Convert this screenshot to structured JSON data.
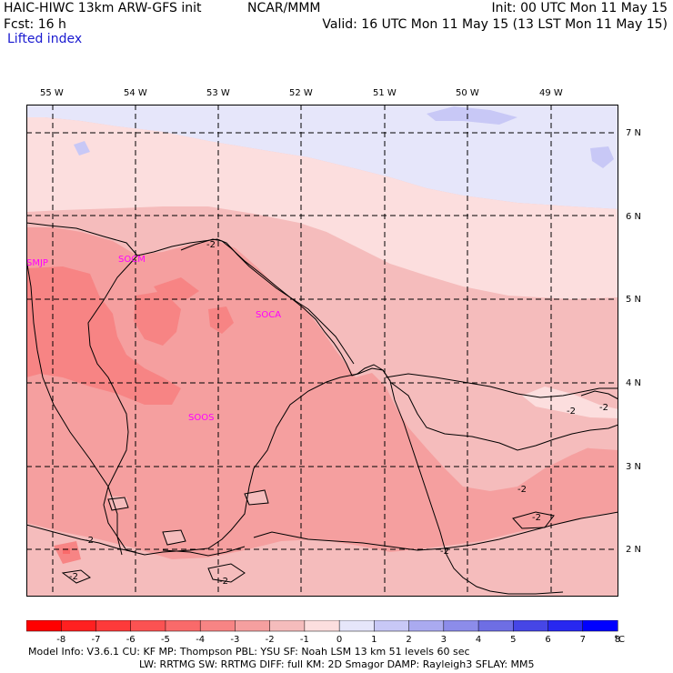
{
  "header": {
    "line1_left": "HAIC-HIWC 13km ARW-GFS init",
    "center": "NCAR/MMM",
    "line1_right": "Init: 00 UTC Mon 11 May 15",
    "line2_left": "Fcst:   16 h",
    "line2_right": "Valid: 16 UTC Mon 11 May 15 (13 LST Mon 11 May 15)",
    "field": "Lifted index"
  },
  "longitudes": [
    "55 W",
    "54 W",
    "53 W",
    "52 W",
    "51 W",
    "50 W",
    "49 W"
  ],
  "latitudes": [
    "7 N",
    "6 N",
    "5 N",
    "4 N",
    "3 N",
    "2 N"
  ],
  "stations": [
    "SMJP",
    "SOCM",
    "SOCA",
    "SOOS"
  ],
  "contour_labels": [
    "-2",
    "-2",
    "-2",
    "-2",
    "-2",
    "-2",
    "-2",
    "-2",
    "-2"
  ],
  "legend": {
    "ticks": [
      "-8",
      "-7",
      "-6",
      "-5",
      "-4",
      "-3",
      "-2",
      "-1",
      "0",
      "1",
      "2",
      "3",
      "4",
      "5",
      "6",
      "7",
      "8"
    ],
    "unit": "°C",
    "colors": [
      "#ff0000",
      "#ff2020",
      "#fd3a3a",
      "#fb5252",
      "#f96a6a",
      "#f78484",
      "#f59f9f",
      "#f5bcbc",
      "#fcdede",
      "#e6e6fa",
      "#c8c8f6",
      "#aaaaf0",
      "#8c8cea",
      "#6e6ee4",
      "#4646e6",
      "#2828f0",
      "#0000ff"
    ]
  },
  "footer": {
    "line1": "Model Info: V3.6.1   CU: KF     MP: Thompson    PBL: YSU      SF: Noah LSM    13 km   51 levels  60 sec",
    "line2": "LW: RRTMG    SW: RRTMG   DIFF: full    KM: 2D Smagor DAMP: Rayleigh3  SFLAY: MM5"
  }
}
